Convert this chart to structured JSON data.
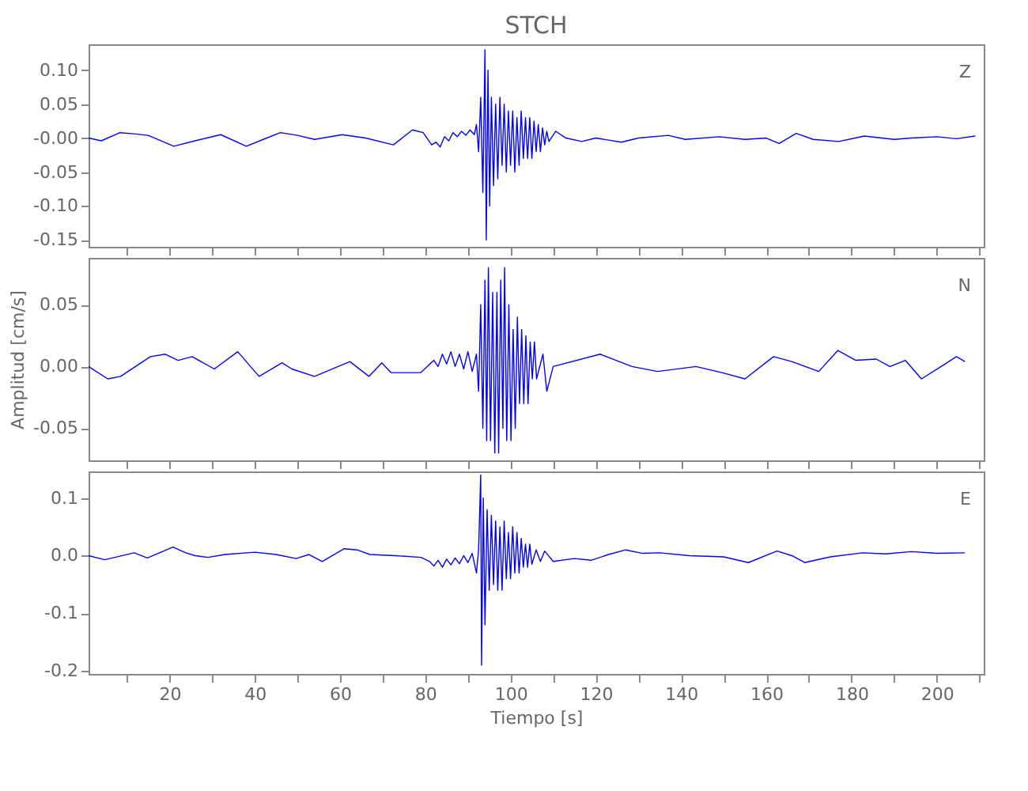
{
  "chart_data": [
    {
      "type": "line",
      "title": "STCH",
      "tick_labels": "y",
      "xlim": [
        1,
        211
      ],
      "ylim": [
        -0.16,
        0.138
      ],
      "xticks": [
        {
          "value": 10,
          "label": null
        },
        20,
        {
          "value": 30,
          "label": null
        },
        40,
        {
          "value": 50,
          "label": null
        },
        60,
        {
          "value": 70,
          "label": null
        },
        80,
        {
          "value": 90,
          "label": null
        },
        100,
        {
          "value": 110,
          "label": null
        },
        120,
        {
          "value": 130,
          "label": null
        },
        140,
        {
          "value": 150,
          "label": null
        },
        160,
        {
          "value": 170,
          "label": null
        },
        180,
        {
          "value": 190,
          "label": null
        },
        200,
        {
          "value": 210,
          "label": null
        }
      ],
      "yticks": [
        {
          "value": -0.15,
          "label": "-0.15"
        },
        {
          "value": -0.1,
          "label": "-0.10"
        },
        {
          "value": -0.05,
          "label": "-0.05"
        },
        {
          "value": 0,
          "label": "-0.00"
        },
        {
          "value": 0.05,
          "label": "0.05"
        },
        {
          "value": 0.1,
          "label": "0.10"
        }
      ],
      "x": [
        1,
        4,
        8.4,
        12,
        15,
        21,
        26,
        32,
        38,
        42,
        46,
        50,
        54,
        60.5,
        66,
        72.5,
        77,
        79.5,
        81.5,
        82.5,
        83.5,
        84.5,
        85.5,
        86.5,
        87.5,
        88.5,
        89.5,
        90.5,
        91.5,
        92,
        92.5,
        93,
        93.5,
        94,
        94.3,
        94.7,
        95.1,
        95.5,
        96,
        96.5,
        97,
        97.5,
        98,
        98.5,
        99,
        99.5,
        100,
        100.5,
        101,
        101.5,
        102,
        102.5,
        103,
        103.5,
        104,
        104.5,
        105,
        105.5,
        106,
        106.5,
        107,
        107.5,
        108,
        108.5,
        109,
        110.6,
        113,
        116.7,
        120,
        123,
        126,
        130,
        137,
        141,
        149,
        155,
        160,
        163,
        167,
        171,
        177,
        183,
        190,
        194,
        200,
        204.6,
        209
      ],
      "series": [
        {
          "name": "Z",
          "color": "#0000ff",
          "values": [
            0,
            -0.004,
            0.008,
            0.006,
            0.004,
            -0.012,
            -0.004,
            0.005,
            -0.012,
            -0.002,
            0.008,
            0.004,
            -0.002,
            0.005,
            0.0,
            -0.01,
            0.012,
            0.008,
            -0.01,
            -0.006,
            -0.013,
            0.002,
            -0.004,
            0.008,
            0.002,
            0.01,
            0.004,
            0.012,
            0.005,
            0.02,
            -0.02,
            0.06,
            -0.08,
            0.13,
            -0.15,
            0.1,
            -0.1,
            0.06,
            -0.07,
            0.05,
            -0.06,
            0.06,
            -0.04,
            0.05,
            -0.05,
            0.04,
            -0.04,
            0.04,
            -0.05,
            0.03,
            -0.04,
            0.04,
            -0.03,
            0.03,
            -0.03,
            0.03,
            -0.03,
            0.025,
            -0.02,
            0.02,
            -0.02,
            0.015,
            -0.01,
            0.01,
            -0.005,
            0.01,
            0.0,
            -0.005,
            0.0,
            -0.003,
            -0.006,
            0.0,
            0.004,
            -0.002,
            0.002,
            -0.002,
            0.0,
            -0.008,
            0.007,
            -0.002,
            -0.005,
            0.003,
            -0.002,
            0.0,
            0.002,
            -0.001,
            0.003
          ]
        }
      ]
    },
    {
      "type": "line",
      "ylabel": "Amplitud [cm/s]",
      "tick_labels": "y",
      "xlim": [
        1,
        211
      ],
      "ylim": [
        -0.076,
        0.088
      ],
      "xticks": [
        {
          "value": 10,
          "label": null
        },
        20,
        {
          "value": 30,
          "label": null
        },
        40,
        {
          "value": 50,
          "label": null
        },
        60,
        {
          "value": 70,
          "label": null
        },
        80,
        {
          "value": 90,
          "label": null
        },
        100,
        {
          "value": 110,
          "label": null
        },
        120,
        {
          "value": 130,
          "label": null
        },
        140,
        {
          "value": 150,
          "label": null
        },
        160,
        {
          "value": 170,
          "label": null
        },
        180,
        {
          "value": 190,
          "label": null
        },
        200,
        {
          "value": 210,
          "label": null
        }
      ],
      "yticks": [
        {
          "value": -0.05,
          "label": "-0.05"
        },
        {
          "value": 0,
          "label": "0.00"
        },
        {
          "value": 0.05,
          "label": "0.05"
        }
      ],
      "x": [
        1,
        5.5,
        8.5,
        15.5,
        19,
        22,
        25.3,
        30.5,
        36,
        41,
        46.4,
        48.7,
        54,
        62.3,
        66.8,
        69.8,
        72,
        78.9,
        82,
        83,
        84,
        85,
        86,
        87,
        88,
        89,
        90,
        91,
        92,
        92.5,
        93,
        93.5,
        94,
        94.4,
        94.8,
        95.3,
        95.8,
        96.3,
        96.8,
        97.2,
        97.7,
        98.2,
        98.6,
        99.1,
        99.6,
        100.1,
        100.6,
        101.1,
        101.6,
        102.1,
        102.6,
        103.1,
        103.6,
        104.1,
        104.6,
        105.1,
        105.6,
        106.1,
        107.6,
        108.5,
        110,
        121,
        128.5,
        134.5,
        143.5,
        149.6,
        155,
        161.7,
        166,
        172.3,
        176.8,
        181,
        185.8,
        189,
        192.6,
        196.4,
        201,
        204.6,
        206.6
      ],
      "series": [
        {
          "name": "N",
          "color": "#0000ff",
          "values": [
            0,
            -0.01,
            -0.008,
            0.008,
            0.01,
            0.005,
            0.008,
            -0.002,
            0.012,
            -0.008,
            0.003,
            -0.002,
            -0.008,
            0.004,
            -0.008,
            0.003,
            -0.005,
            -0.005,
            0.005,
            0.0,
            0.01,
            0.002,
            0.012,
            0.0,
            0.01,
            -0.002,
            0.012,
            -0.004,
            0.01,
            -0.02,
            0.05,
            -0.05,
            0.07,
            -0.06,
            0.08,
            -0.06,
            0.06,
            -0.07,
            0.06,
            -0.07,
            0.07,
            -0.05,
            0.08,
            -0.06,
            0.05,
            -0.06,
            0.03,
            -0.05,
            0.04,
            -0.03,
            0.03,
            -0.03,
            0.025,
            -0.03,
            0.02,
            -0.01,
            0.02,
            -0.01,
            0.01,
            -0.02,
            0.0,
            0.01,
            0.0,
            -0.004,
            0.0,
            -0.005,
            -0.01,
            0.008,
            0.004,
            -0.004,
            0.013,
            0.005,
            0.006,
            0.0,
            0.005,
            -0.01,
            0.0,
            0.008,
            0.004
          ]
        }
      ]
    },
    {
      "type": "line",
      "xlabel": "Tiempo [s]",
      "xlim": [
        1,
        211
      ],
      "ylim": [
        -0.205,
        0.146
      ],
      "xticks": [
        {
          "value": 10,
          "label": null
        },
        20,
        {
          "value": 30,
          "label": null
        },
        40,
        {
          "value": 50,
          "label": null
        },
        60,
        {
          "value": 70,
          "label": null
        },
        80,
        {
          "value": 90,
          "label": null
        },
        100,
        {
          "value": 110,
          "label": null
        },
        120,
        {
          "value": 130,
          "label": null
        },
        140,
        {
          "value": 150,
          "label": null
        },
        160,
        {
          "value": 170,
          "label": null
        },
        180,
        {
          "value": 190,
          "label": null
        },
        200,
        {
          "value": 210,
          "label": null
        }
      ],
      "yticks": [
        {
          "value": -0.2,
          "label": "-0.2"
        },
        {
          "value": -0.1,
          "label": "-0.1"
        },
        {
          "value": 0,
          "label": "0.0"
        },
        {
          "value": 0.1,
          "label": "0.1"
        }
      ],
      "x": [
        1,
        4.8,
        11.7,
        14.8,
        20.8,
        23.8,
        26,
        29,
        33,
        40,
        45,
        49.7,
        52.7,
        55.8,
        61,
        64,
        67,
        73,
        79,
        81,
        82,
        83,
        84,
        85,
        86,
        87,
        88,
        89,
        90,
        91,
        92,
        92.5,
        93,
        93.2,
        93.6,
        94,
        94.5,
        95,
        95.5,
        96,
        96.5,
        97,
        97.5,
        98,
        98.5,
        99,
        99.5,
        100,
        100.5,
        101,
        101.5,
        102,
        102.5,
        103,
        103.5,
        104,
        104.5,
        105,
        106,
        107,
        108,
        110,
        115,
        118.9,
        123,
        127,
        131,
        135,
        142,
        150,
        155.8,
        162.5,
        166,
        169,
        175,
        182.6,
        188,
        194,
        200,
        206.6
      ],
      "series": [
        {
          "name": "E",
          "color": "#0000ff",
          "values": [
            0,
            -0.007,
            0.005,
            -0.004,
            0.015,
            0.005,
            0.0,
            -0.003,
            0.002,
            0.006,
            0.002,
            -0.005,
            0.002,
            -0.01,
            0.012,
            0.01,
            0.002,
            0.0,
            -0.003,
            -0.01,
            -0.018,
            -0.008,
            -0.02,
            -0.006,
            -0.016,
            -0.004,
            -0.014,
            0.0,
            -0.012,
            0.004,
            -0.03,
            0.01,
            0.14,
            -0.19,
            0.1,
            -0.12,
            0.08,
            -0.06,
            0.07,
            -0.05,
            0.06,
            -0.06,
            0.05,
            -0.06,
            0.06,
            -0.04,
            0.04,
            -0.04,
            0.05,
            -0.03,
            0.04,
            -0.03,
            0.03,
            -0.02,
            0.02,
            -0.02,
            0.02,
            -0.015,
            0.01,
            -0.01,
            0.008,
            -0.01,
            -0.005,
            -0.008,
            0.002,
            0.01,
            0.004,
            0.005,
            0.0,
            -0.002,
            -0.012,
            0.008,
            0.0,
            -0.012,
            -0.002,
            0.005,
            0.003,
            0.007,
            0.004,
            0.005
          ]
        }
      ]
    }
  ]
}
